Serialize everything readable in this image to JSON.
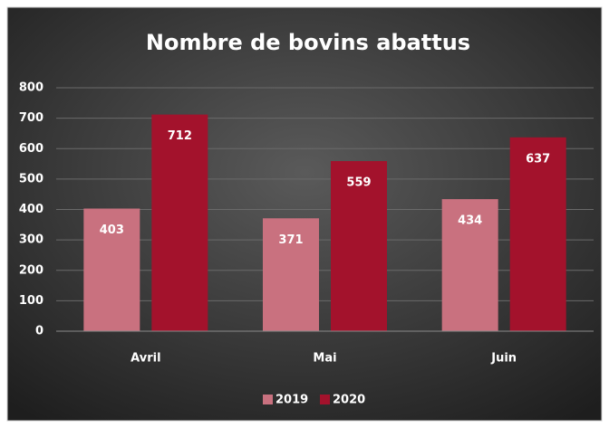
{
  "chart_data": {
    "type": "bar",
    "title": "Nombre de bovins abattus",
    "categories": [
      "Avril",
      "Mai",
      "Juin"
    ],
    "series": [
      {
        "name": "2019",
        "color": "#c9717f",
        "values": [
          403,
          371,
          434
        ]
      },
      {
        "name": "2020",
        "color": "#a3122c",
        "values": [
          712,
          559,
          637
        ]
      }
    ],
    "ylim": [
      0,
      800
    ],
    "yticks": [
      0,
      100,
      200,
      300,
      400,
      500,
      600,
      700,
      800
    ],
    "grid": true,
    "legend": "bottom"
  }
}
